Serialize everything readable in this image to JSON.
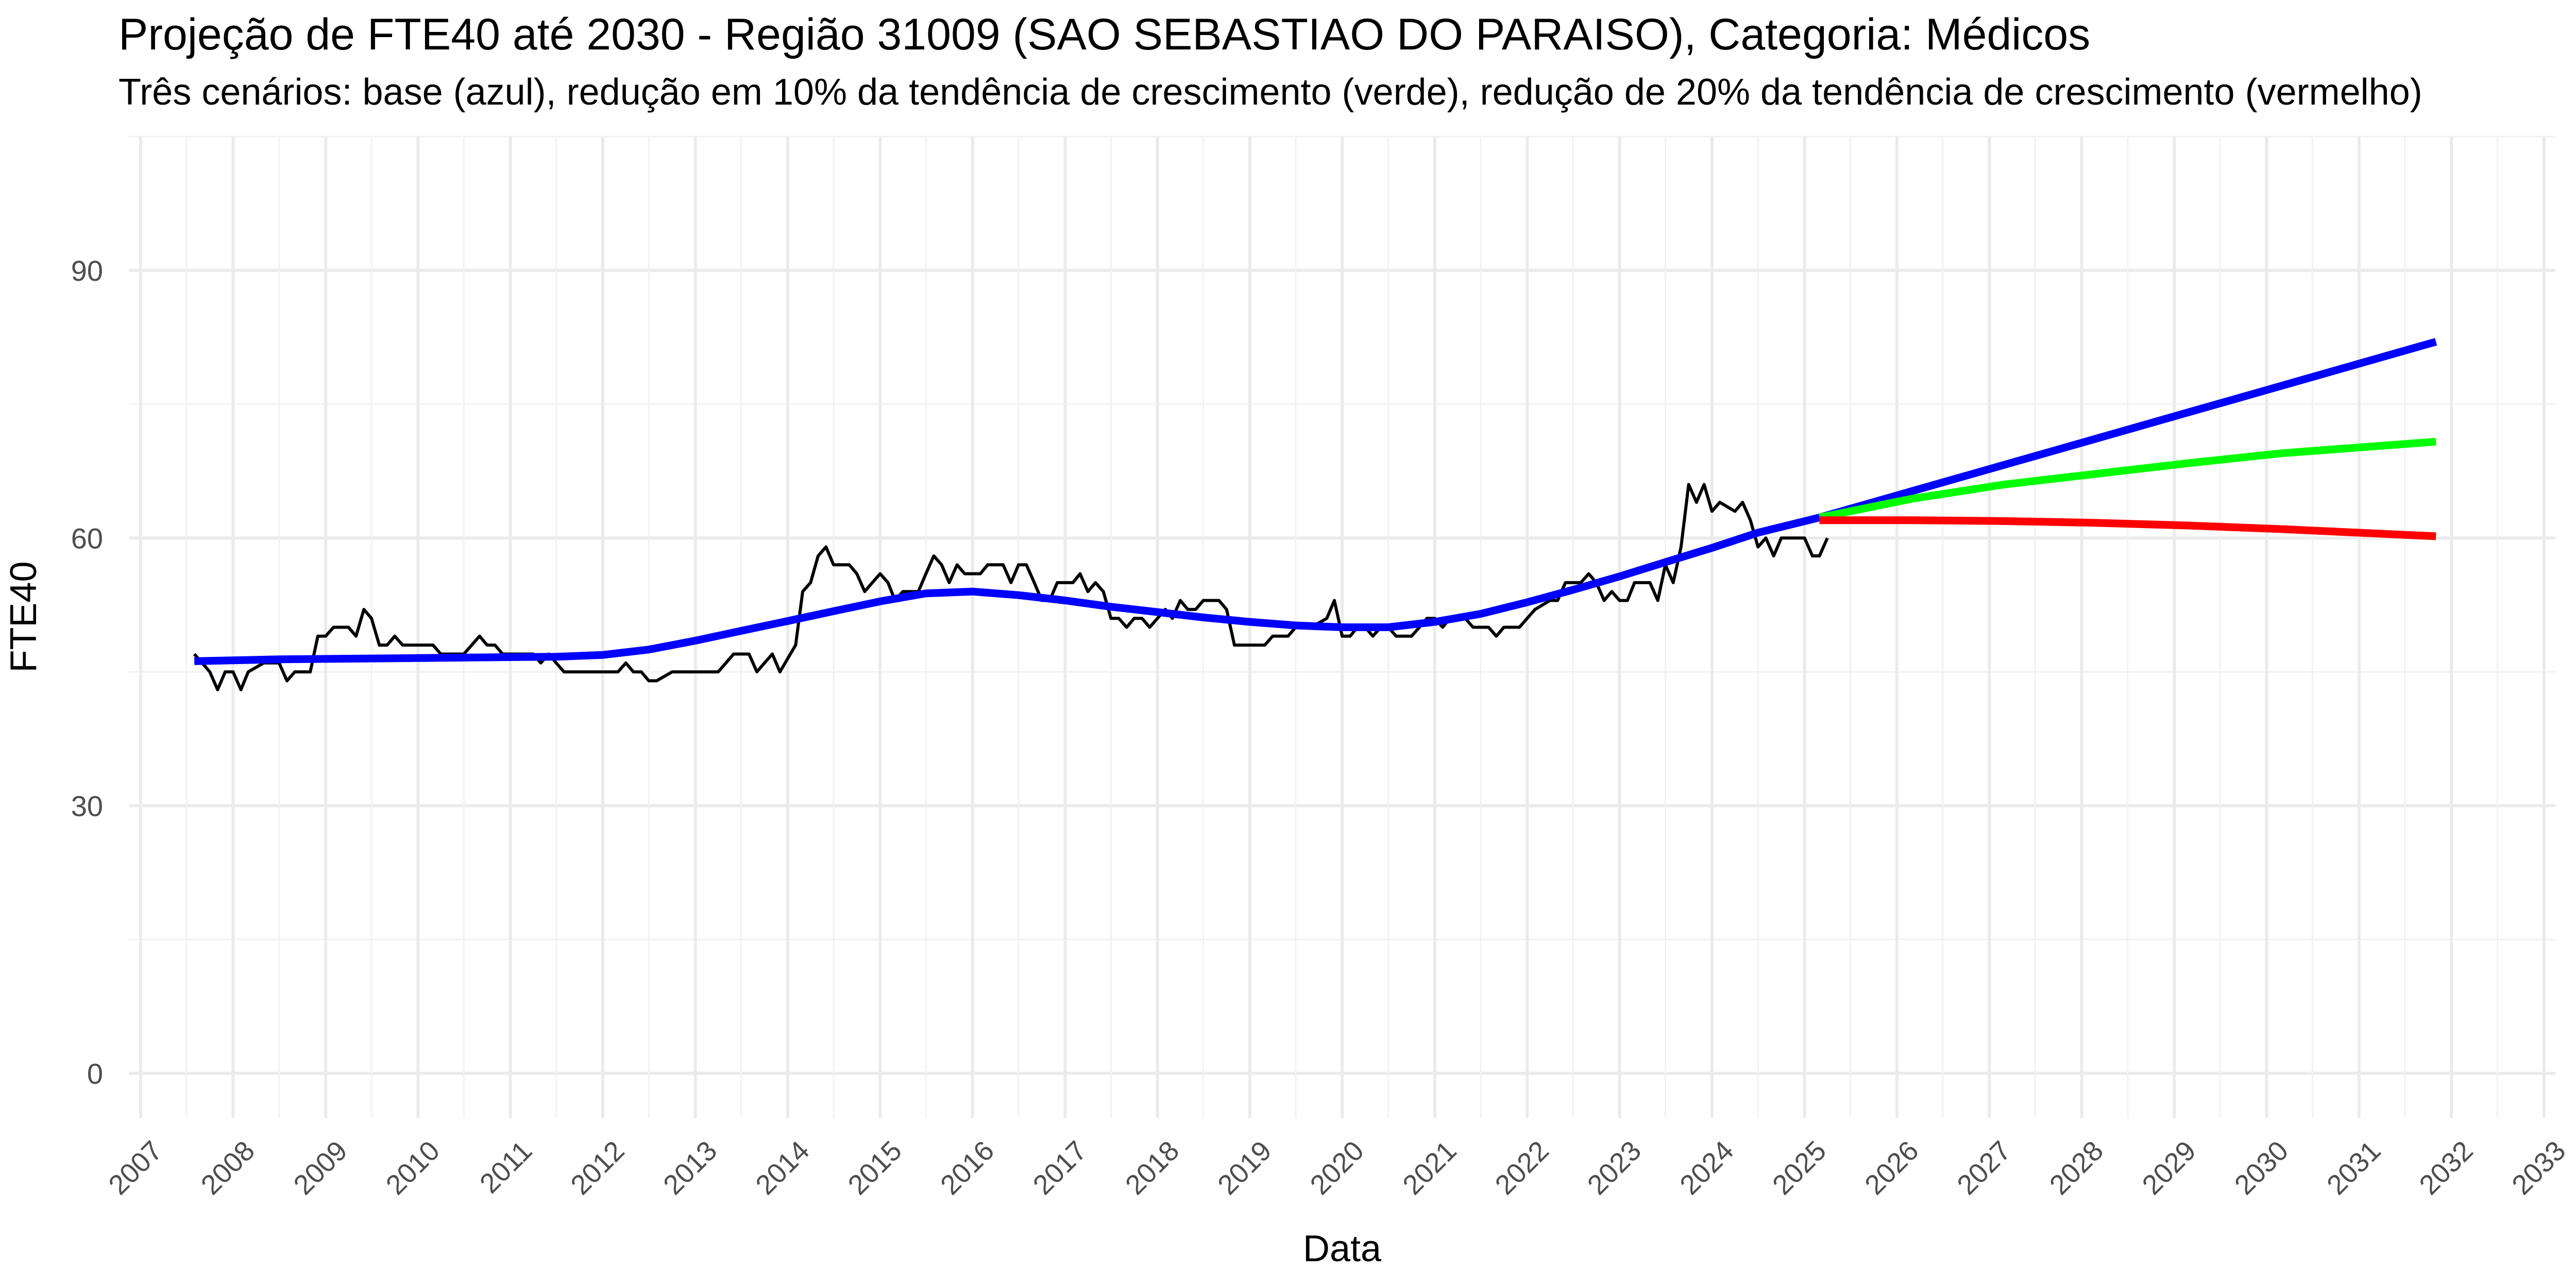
{
  "chart_data": {
    "type": "line",
    "title": "Projeção de FTE40 até 2030 - Região 31009 (SAO SEBASTIAO DO PARAISO), Categoria: Médicos",
    "subtitle": "Três cenários: base (azul), redução em 10% da tendência de crescimento (verde), redução de 20% da tendência de crescimento (vermelho)",
    "xlabel": "Data",
    "ylabel": "FTE40",
    "x_type": "date",
    "xlim": [
      "2006-11-15",
      "2033-02-15"
    ],
    "ylim": [
      -5,
      105
    ],
    "x_ticks": [
      "2007",
      "2008",
      "2009",
      "2010",
      "2011",
      "2012",
      "2013",
      "2014",
      "2015",
      "2016",
      "2017",
      "2018",
      "2019",
      "2020",
      "2021",
      "2022",
      "2023",
      "2024",
      "2025",
      "2026",
      "2027",
      "2028",
      "2029",
      "2030",
      "2031",
      "2032",
      "2033"
    ],
    "y_ticks": [
      0,
      30,
      60,
      90
    ],
    "grid": true,
    "legend": "none",
    "series": [
      {
        "color": "#000000",
        "width": 2,
        "points": [
          [
            "2007-08-01",
            47
          ],
          [
            "2007-09-01",
            46
          ],
          [
            "2007-10-01",
            45
          ],
          [
            "2007-11-01",
            43
          ],
          [
            "2007-12-01",
            45
          ],
          [
            "2008-01-01",
            45
          ],
          [
            "2008-02-01",
            43
          ],
          [
            "2008-03-01",
            45
          ],
          [
            "2008-05-01",
            46
          ],
          [
            "2008-07-01",
            46
          ],
          [
            "2008-08-01",
            44
          ],
          [
            "2008-09-01",
            45
          ],
          [
            "2008-11-01",
            45
          ],
          [
            "2008-12-01",
            49
          ],
          [
            "2009-01-01",
            49
          ],
          [
            "2009-02-01",
            50
          ],
          [
            "2009-04-01",
            50
          ],
          [
            "2009-05-01",
            49
          ],
          [
            "2009-06-01",
            52
          ],
          [
            "2009-07-01",
            51
          ],
          [
            "2009-08-01",
            48
          ],
          [
            "2009-09-01",
            48
          ],
          [
            "2009-10-01",
            49
          ],
          [
            "2009-11-01",
            48
          ],
          [
            "2010-01-01",
            48
          ],
          [
            "2010-03-01",
            48
          ],
          [
            "2010-04-01",
            47
          ],
          [
            "2010-07-01",
            47
          ],
          [
            "2010-08-01",
            48
          ],
          [
            "2010-09-01",
            49
          ],
          [
            "2010-10-01",
            48
          ],
          [
            "2010-11-01",
            48
          ],
          [
            "2010-12-01",
            47
          ],
          [
            "2011-02-01",
            47
          ],
          [
            "2011-04-01",
            47
          ],
          [
            "2011-05-01",
            46
          ],
          [
            "2011-06-01",
            47
          ],
          [
            "2011-07-01",
            46
          ],
          [
            "2011-08-01",
            45
          ],
          [
            "2011-12-01",
            45
          ],
          [
            "2012-03-01",
            45
          ],
          [
            "2012-04-01",
            46
          ],
          [
            "2012-05-01",
            45
          ],
          [
            "2012-06-01",
            45
          ],
          [
            "2012-07-01",
            44
          ],
          [
            "2012-08-01",
            44
          ],
          [
            "2012-10-01",
            45
          ],
          [
            "2013-04-01",
            45
          ],
          [
            "2013-06-01",
            47
          ],
          [
            "2013-08-01",
            47
          ],
          [
            "2013-09-01",
            45
          ],
          [
            "2013-10-01",
            46
          ],
          [
            "2013-11-01",
            47
          ],
          [
            "2013-12-01",
            45
          ],
          [
            "2014-02-01",
            48
          ],
          [
            "2014-03-01",
            54
          ],
          [
            "2014-04-01",
            55
          ],
          [
            "2014-05-01",
            58
          ],
          [
            "2014-06-01",
            59
          ],
          [
            "2014-07-01",
            57
          ],
          [
            "2014-09-01",
            57
          ],
          [
            "2014-10-01",
            56
          ],
          [
            "2014-11-01",
            54
          ],
          [
            "2014-12-01",
            55
          ],
          [
            "2015-01-01",
            56
          ],
          [
            "2015-02-01",
            55
          ],
          [
            "2015-03-01",
            53
          ],
          [
            "2015-04-01",
            54
          ],
          [
            "2015-06-01",
            54
          ],
          [
            "2015-07-01",
            56
          ],
          [
            "2015-08-01",
            58
          ],
          [
            "2015-09-01",
            57
          ],
          [
            "2015-10-01",
            55
          ],
          [
            "2015-11-01",
            57
          ],
          [
            "2015-12-01",
            56
          ],
          [
            "2016-02-01",
            56
          ],
          [
            "2016-03-01",
            57
          ],
          [
            "2016-05-01",
            57
          ],
          [
            "2016-06-01",
            55
          ],
          [
            "2016-07-01",
            57
          ],
          [
            "2016-08-01",
            57
          ],
          [
            "2016-09-01",
            55
          ],
          [
            "2016-10-01",
            53
          ],
          [
            "2016-11-01",
            53
          ],
          [
            "2016-12-01",
            55
          ],
          [
            "2017-02-01",
            55
          ],
          [
            "2017-03-01",
            56
          ],
          [
            "2017-04-01",
            54
          ],
          [
            "2017-05-01",
            55
          ],
          [
            "2017-06-01",
            54
          ],
          [
            "2017-07-01",
            51
          ],
          [
            "2017-08-01",
            51
          ],
          [
            "2017-09-01",
            50
          ],
          [
            "2017-10-01",
            51
          ],
          [
            "2017-11-01",
            51
          ],
          [
            "2017-12-01",
            50
          ],
          [
            "2018-01-01",
            51
          ],
          [
            "2018-02-01",
            52
          ],
          [
            "2018-03-01",
            51
          ],
          [
            "2018-04-01",
            53
          ],
          [
            "2018-05-01",
            52
          ],
          [
            "2018-06-01",
            52
          ],
          [
            "2018-07-01",
            53
          ],
          [
            "2018-09-01",
            53
          ],
          [
            "2018-10-01",
            52
          ],
          [
            "2018-11-01",
            48
          ],
          [
            "2019-03-01",
            48
          ],
          [
            "2019-04-01",
            49
          ],
          [
            "2019-06-01",
            49
          ],
          [
            "2019-07-01",
            50
          ],
          [
            "2019-09-01",
            50
          ],
          [
            "2019-11-01",
            51
          ],
          [
            "2019-12-01",
            53
          ],
          [
            "2020-01-01",
            49
          ],
          [
            "2020-02-01",
            49
          ],
          [
            "2020-03-01",
            50
          ],
          [
            "2020-04-01",
            50
          ],
          [
            "2020-05-01",
            49
          ],
          [
            "2020-06-01",
            50
          ],
          [
            "2020-07-01",
            50
          ],
          [
            "2020-08-01",
            49
          ],
          [
            "2020-10-01",
            49
          ],
          [
            "2020-11-01",
            50
          ],
          [
            "2020-12-01",
            51
          ],
          [
            "2021-01-01",
            51
          ],
          [
            "2021-02-01",
            50
          ],
          [
            "2021-03-01",
            51
          ],
          [
            "2021-05-01",
            51
          ],
          [
            "2021-06-01",
            50
          ],
          [
            "2021-08-01",
            50
          ],
          [
            "2021-09-01",
            49
          ],
          [
            "2021-10-01",
            50
          ],
          [
            "2021-12-01",
            50
          ],
          [
            "2022-01-01",
            51
          ],
          [
            "2022-02-01",
            52
          ],
          [
            "2022-04-01",
            53
          ],
          [
            "2022-05-01",
            53
          ],
          [
            "2022-06-01",
            55
          ],
          [
            "2022-08-01",
            55
          ],
          [
            "2022-09-01",
            56
          ],
          [
            "2022-10-01",
            55
          ],
          [
            "2022-11-01",
            53
          ],
          [
            "2022-12-01",
            54
          ],
          [
            "2023-01-01",
            53
          ],
          [
            "2023-02-01",
            53
          ],
          [
            "2023-03-01",
            55
          ],
          [
            "2023-05-01",
            55
          ],
          [
            "2023-06-01",
            53
          ],
          [
            "2023-07-01",
            57
          ],
          [
            "2023-08-01",
            55
          ],
          [
            "2023-09-01",
            59
          ],
          [
            "2023-10-01",
            66
          ],
          [
            "2023-11-01",
            64
          ],
          [
            "2023-12-01",
            66
          ],
          [
            "2024-01-01",
            63
          ],
          [
            "2024-02-01",
            64
          ],
          [
            "2024-04-01",
            63
          ],
          [
            "2024-05-01",
            64
          ],
          [
            "2024-06-01",
            62
          ],
          [
            "2024-07-01",
            59
          ],
          [
            "2024-08-01",
            60
          ],
          [
            "2024-09-01",
            58
          ],
          [
            "2024-10-01",
            60
          ],
          [
            "2025-01-01",
            60
          ],
          [
            "2025-02-01",
            58
          ],
          [
            "2025-03-01",
            58
          ],
          [
            "2025-04-01",
            60
          ]
        ]
      },
      {
        "color": "#0000ff",
        "width": 5,
        "points": [
          [
            "2007-08-01",
            46.2
          ],
          [
            "2008-07-01",
            46.4
          ],
          [
            "2009-07-01",
            46.5
          ],
          [
            "2010-07-01",
            46.6
          ],
          [
            "2011-07-01",
            46.7
          ],
          [
            "2012-01-01",
            46.9
          ],
          [
            "2012-07-01",
            47.5
          ],
          [
            "2013-01-01",
            48.5
          ],
          [
            "2013-07-01",
            49.6
          ],
          [
            "2014-01-01",
            50.7
          ],
          [
            "2014-07-01",
            51.8
          ],
          [
            "2015-01-01",
            52.9
          ],
          [
            "2015-07-01",
            53.8
          ],
          [
            "2016-01-01",
            54.0
          ],
          [
            "2016-07-01",
            53.6
          ],
          [
            "2017-01-01",
            53.0
          ],
          [
            "2017-07-01",
            52.3
          ],
          [
            "2018-01-01",
            51.7
          ],
          [
            "2018-07-01",
            51.1
          ],
          [
            "2019-01-01",
            50.6
          ],
          [
            "2019-07-01",
            50.2
          ],
          [
            "2020-01-01",
            50.0
          ],
          [
            "2020-07-01",
            50.0
          ],
          [
            "2021-01-01",
            50.6
          ],
          [
            "2021-07-01",
            51.5
          ],
          [
            "2022-01-01",
            52.8
          ],
          [
            "2022-07-01",
            54.2
          ],
          [
            "2023-01-01",
            55.7
          ],
          [
            "2023-07-01",
            57.3
          ],
          [
            "2024-01-01",
            58.9
          ],
          [
            "2024-07-01",
            60.6
          ],
          [
            "2025-03-01",
            62.3
          ],
          [
            "2031-11-01",
            82.0
          ]
        ]
      },
      {
        "color": "#00ff00",
        "width": 5,
        "points": [
          [
            "2025-03-01",
            62.3
          ],
          [
            "2026-03-01",
            64.4
          ],
          [
            "2027-03-01",
            66.0
          ],
          [
            "2028-03-01",
            67.2
          ],
          [
            "2029-03-01",
            68.4
          ],
          [
            "2030-03-01",
            69.5
          ],
          [
            "2031-11-01",
            70.8
          ]
        ]
      },
      {
        "color": "#ff0000",
        "width": 5,
        "points": [
          [
            "2025-03-01",
            62.0
          ],
          [
            "2026-03-01",
            62.0
          ],
          [
            "2027-03-01",
            61.9
          ],
          [
            "2028-03-01",
            61.7
          ],
          [
            "2029-03-01",
            61.4
          ],
          [
            "2030-03-01",
            61.0
          ],
          [
            "2031-11-01",
            60.2
          ]
        ]
      }
    ]
  }
}
